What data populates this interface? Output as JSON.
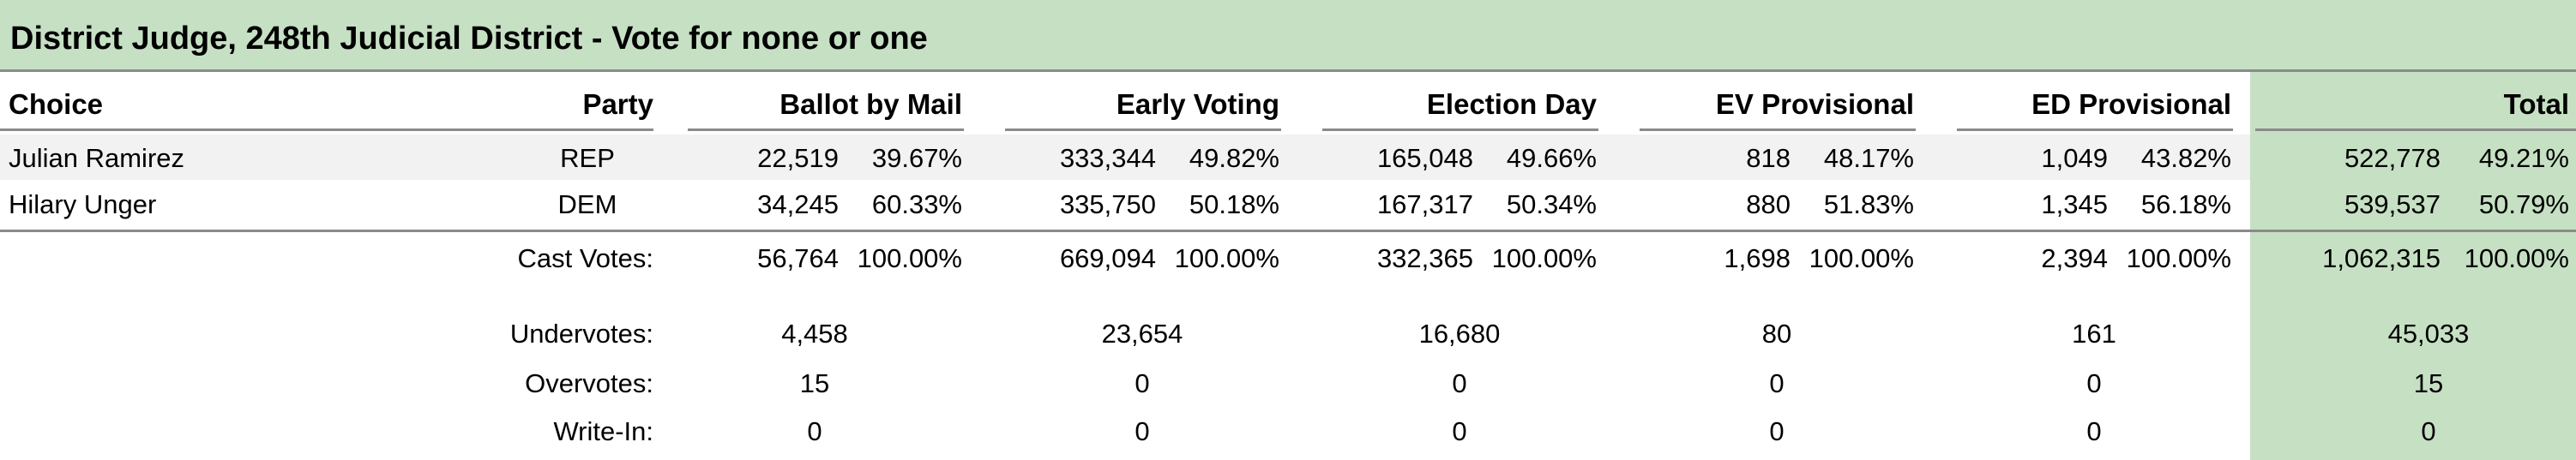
{
  "title": "District Judge, 248th Judicial District - Vote for none or one",
  "headers": {
    "choice": "Choice",
    "party": "Party",
    "ballot_by_mail": "Ballot by Mail",
    "early_voting": "Early Voting",
    "election_day": "Election Day",
    "ev_provisional": "EV Provisional",
    "ed_provisional": "ED Provisional",
    "total": "Total"
  },
  "candidates": [
    {
      "name": "Julian Ramirez",
      "party": "REP",
      "bbm_votes": "22,519",
      "bbm_pct": "39.67%",
      "ev_votes": "333,344",
      "ev_pct": "49.82%",
      "ed_votes": "165,048",
      "ed_pct": "49.66%",
      "evp_votes": "818",
      "evp_pct": "48.17%",
      "edp_votes": "1,049",
      "edp_pct": "43.82%",
      "total_votes": "522,778",
      "total_pct": "49.21%"
    },
    {
      "name": "Hilary Unger",
      "party": "DEM",
      "bbm_votes": "34,245",
      "bbm_pct": "60.33%",
      "ev_votes": "335,750",
      "ev_pct": "50.18%",
      "ed_votes": "167,317",
      "ed_pct": "50.34%",
      "evp_votes": "880",
      "evp_pct": "51.83%",
      "edp_votes": "1,345",
      "edp_pct": "56.18%",
      "total_votes": "539,537",
      "total_pct": "50.79%"
    }
  ],
  "cast": {
    "label": "Cast Votes:",
    "bbm_votes": "56,764",
    "bbm_pct": "100.00%",
    "ev_votes": "669,094",
    "ev_pct": "100.00%",
    "ed_votes": "332,365",
    "ed_pct": "100.00%",
    "evp_votes": "1,698",
    "evp_pct": "100.00%",
    "edp_votes": "2,394",
    "edp_pct": "100.00%",
    "total_votes": "1,062,315",
    "total_pct": "100.00%"
  },
  "undervotes": {
    "label": "Undervotes:",
    "bbm": "4,458",
    "ev": "23,654",
    "ed": "16,680",
    "evp": "80",
    "edp": "161",
    "total": "45,033"
  },
  "overvotes": {
    "label": "Overvotes:",
    "bbm": "15",
    "ev": "0",
    "ed": "0",
    "evp": "0",
    "edp": "0",
    "total": "15"
  },
  "writein": {
    "label": "Write-In:",
    "bbm": "0",
    "ev": "0",
    "ed": "0",
    "evp": "0",
    "edp": "0",
    "total": "0"
  },
  "colors": {
    "header_green": "#c6e0c4",
    "row_shade": "#f2f2f2",
    "rule_gray": "#8a8a8a"
  }
}
